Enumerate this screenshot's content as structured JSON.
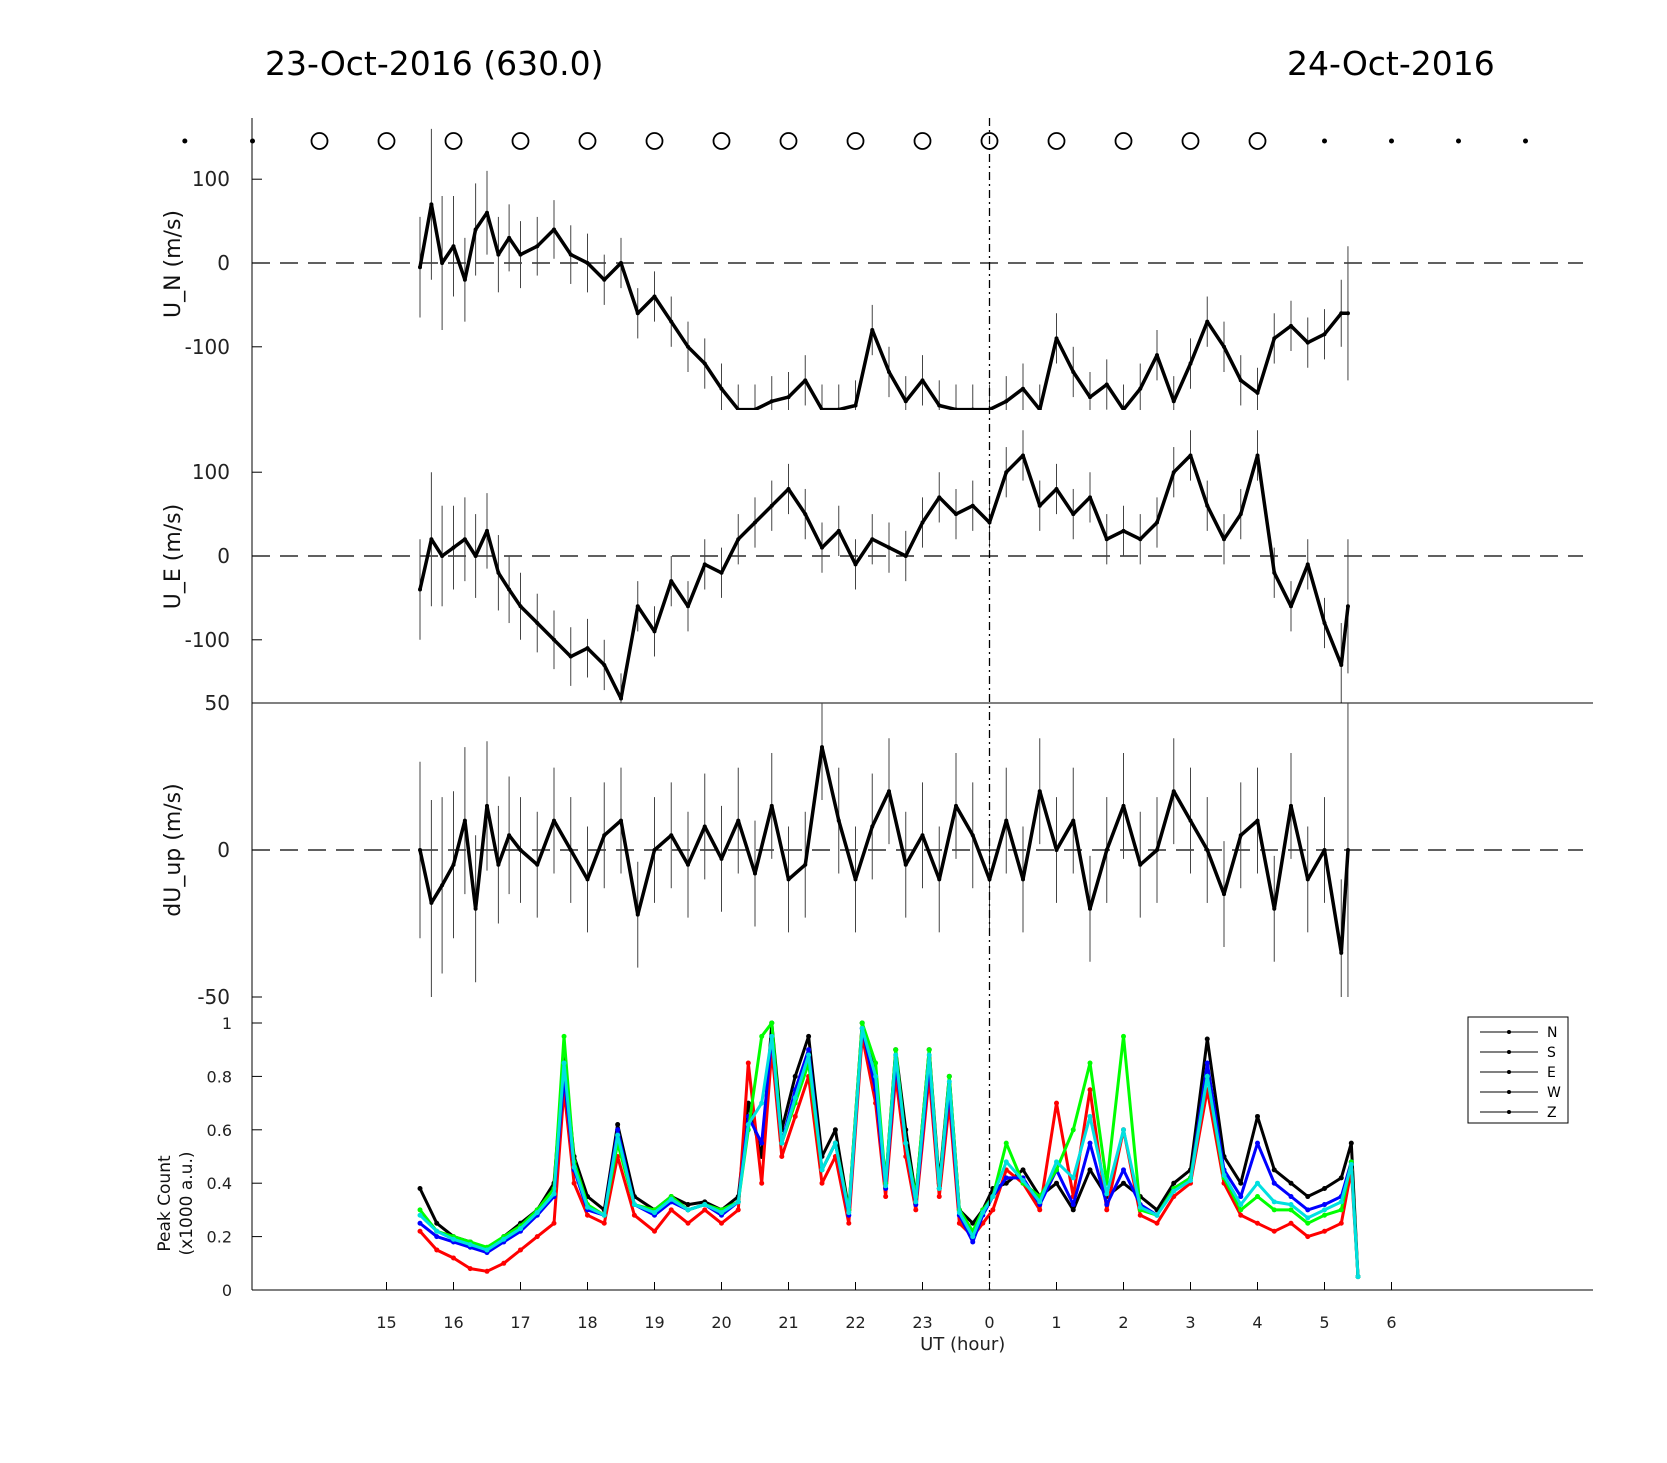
{
  "header": {
    "title_left": "23-Oct-2016 (630.0)",
    "title_right": "24-Oct-2016"
  },
  "chart_data": [
    {
      "type": "line",
      "panel": "U_N",
      "ylabel": "U_N (m/s)",
      "ylim": [
        -175,
        175
      ],
      "yticks": [
        100,
        0,
        -100
      ],
      "x_range_hours": [
        15.5,
        29.5
      ],
      "series": [
        {
          "error_bars": true,
          "x": [
            15.5,
            15.67,
            15.83,
            16.0,
            16.17,
            16.33,
            16.5,
            16.67,
            16.83,
            17.0,
            17.25,
            17.5,
            17.75,
            18.0,
            18.25,
            18.5,
            18.75,
            19.0,
            19.25,
            19.5,
            19.75,
            20.0,
            20.25,
            20.5,
            20.75,
            21.0,
            21.25,
            21.5,
            21.75,
            22.0,
            22.25,
            22.5,
            22.75,
            23.0,
            23.25,
            23.5,
            23.75,
            24.0,
            24.25,
            24.5,
            24.75,
            25.0,
            25.25,
            25.5,
            25.75,
            26.0,
            26.25,
            26.5,
            26.75,
            27.0,
            27.25,
            27.5,
            27.75,
            28.0,
            28.25,
            28.5,
            28.75,
            29.0,
            29.25,
            29.35
          ],
          "y": [
            -5,
            70,
            0,
            20,
            -20,
            40,
            60,
            10,
            30,
            10,
            20,
            40,
            10,
            0,
            -20,
            0,
            -60,
            -40,
            -70,
            -100,
            -120,
            -150,
            -175,
            -175,
            -165,
            -160,
            -140,
            -175,
            -175,
            -170,
            -80,
            -130,
            -165,
            -140,
            -170,
            -175,
            -175,
            -175,
            -165,
            -150,
            -175,
            -90,
            -130,
            -160,
            -145,
            -175,
            -150,
            -110,
            -165,
            -120,
            -70,
            -100,
            -140,
            -155,
            -90,
            -75,
            -95,
            -85,
            -60,
            -60
          ],
          "err": [
            60,
            90,
            80,
            60,
            50,
            55,
            50,
            45,
            40,
            40,
            35,
            35,
            35,
            35,
            30,
            30,
            30,
            30,
            30,
            30,
            30,
            30,
            30,
            30,
            30,
            30,
            30,
            30,
            30,
            30,
            30,
            30,
            30,
            30,
            30,
            30,
            30,
            30,
            30,
            30,
            30,
            30,
            30,
            30,
            30,
            30,
            30,
            30,
            30,
            30,
            30,
            30,
            30,
            30,
            30,
            30,
            30,
            30,
            40,
            80
          ]
        }
      ]
    },
    {
      "type": "line",
      "panel": "U_E",
      "ylabel": "U_E (m/s)",
      "ylim": [
        -175,
        175
      ],
      "yticks": [
        100,
        0,
        -100
      ],
      "x_range_hours": [
        15.5,
        29.5
      ],
      "series": [
        {
          "error_bars": true,
          "x": [
            15.5,
            15.67,
            15.83,
            16.0,
            16.17,
            16.33,
            16.5,
            16.67,
            16.83,
            17.0,
            17.25,
            17.5,
            17.75,
            18.0,
            18.25,
            18.5,
            18.75,
            19.0,
            19.25,
            19.5,
            19.75,
            20.0,
            20.25,
            20.5,
            20.75,
            21.0,
            21.25,
            21.5,
            21.75,
            22.0,
            22.25,
            22.5,
            22.75,
            23.0,
            23.25,
            23.5,
            23.75,
            24.0,
            24.25,
            24.5,
            24.75,
            25.0,
            25.25,
            25.5,
            25.75,
            26.0,
            26.25,
            26.5,
            26.75,
            27.0,
            27.25,
            27.5,
            27.75,
            28.0,
            28.25,
            28.5,
            28.75,
            29.0,
            29.25,
            29.35
          ],
          "y": [
            -40,
            20,
            0,
            10,
            20,
            0,
            30,
            -20,
            -40,
            -60,
            -80,
            -100,
            -120,
            -110,
            -130,
            -170,
            -60,
            -90,
            -30,
            -60,
            -10,
            -20,
            20,
            40,
            60,
            80,
            50,
            10,
            30,
            -10,
            20,
            10,
            0,
            40,
            70,
            50,
            60,
            40,
            100,
            120,
            60,
            80,
            50,
            70,
            20,
            30,
            20,
            40,
            100,
            120,
            60,
            20,
            50,
            120,
            -20,
            -60,
            -10,
            -80,
            -130,
            -60
          ],
          "err": [
            60,
            80,
            60,
            50,
            50,
            50,
            45,
            45,
            40,
            40,
            35,
            35,
            35,
            35,
            30,
            30,
            30,
            30,
            30,
            30,
            30,
            30,
            30,
            30,
            30,
            30,
            30,
            30,
            30,
            30,
            30,
            30,
            30,
            30,
            30,
            30,
            30,
            30,
            30,
            30,
            30,
            30,
            30,
            30,
            30,
            30,
            30,
            30,
            30,
            30,
            30,
            30,
            30,
            30,
            30,
            30,
            30,
            30,
            50,
            80
          ]
        }
      ]
    },
    {
      "type": "line",
      "panel": "dU_up",
      "ylabel": "dU_up (m/s)",
      "ylim": [
        -50,
        50
      ],
      "yticks": [
        50,
        0,
        -50
      ],
      "x_range_hours": [
        15.5,
        29.5
      ],
      "series": [
        {
          "error_bars": true,
          "x": [
            15.5,
            15.67,
            15.83,
            16.0,
            16.17,
            16.33,
            16.5,
            16.67,
            16.83,
            17.0,
            17.25,
            17.5,
            17.75,
            18.0,
            18.25,
            18.5,
            18.75,
            19.0,
            19.25,
            19.5,
            19.75,
            20.0,
            20.25,
            20.5,
            20.75,
            21.0,
            21.25,
            21.5,
            21.75,
            22.0,
            22.25,
            22.5,
            22.75,
            23.0,
            23.25,
            23.5,
            23.75,
            24.0,
            24.25,
            24.5,
            24.75,
            25.0,
            25.25,
            25.5,
            25.75,
            26.0,
            26.25,
            26.5,
            26.75,
            27.0,
            27.25,
            27.5,
            27.75,
            28.0,
            28.25,
            28.5,
            28.75,
            29.0,
            29.25,
            29.35
          ],
          "y": [
            0,
            -18,
            -12,
            -5,
            10,
            -20,
            15,
            -5,
            5,
            0,
            -5,
            10,
            0,
            -10,
            5,
            10,
            -22,
            0,
            5,
            -5,
            8,
            -3,
            10,
            -8,
            15,
            -10,
            -5,
            35,
            10,
            -10,
            8,
            20,
            -5,
            5,
            -10,
            15,
            5,
            -10,
            10,
            -10,
            20,
            0,
            10,
            -20,
            0,
            15,
            -5,
            0,
            20,
            10,
            0,
            -15,
            5,
            10,
            -20,
            15,
            -10,
            0,
            -35,
            0
          ],
          "err": [
            30,
            35,
            30,
            25,
            25,
            25,
            22,
            20,
            20,
            18,
            18,
            18,
            18,
            18,
            18,
            18,
            18,
            18,
            18,
            18,
            18,
            18,
            18,
            18,
            18,
            18,
            18,
            18,
            18,
            18,
            18,
            18,
            18,
            18,
            18,
            18,
            18,
            18,
            18,
            18,
            18,
            18,
            18,
            18,
            18,
            18,
            18,
            18,
            18,
            18,
            18,
            18,
            18,
            18,
            18,
            18,
            18,
            18,
            25,
            50
          ]
        }
      ]
    },
    {
      "type": "line",
      "panel": "peak_count",
      "ylabel": "Peak Count (x1000 a.u.)",
      "xlabel": "UT (hour)",
      "ylim": [
        0,
        1
      ],
      "yticks": [
        0,
        0.2,
        0.4,
        0.6,
        0.8,
        1
      ],
      "xlim": [
        12.8,
        32.8
      ],
      "x_ticks_hours": [
        15,
        16,
        17,
        18,
        19,
        20,
        21,
        22,
        23,
        24,
        25,
        26,
        27,
        28,
        29,
        30
      ],
      "x_tick_labels": [
        "15",
        "16",
        "17",
        "18",
        "19",
        "20",
        "21",
        "22",
        "23",
        "0",
        "1",
        "2",
        "3",
        "4",
        "5",
        "6"
      ],
      "legend_position": "top-right",
      "x": [
        15.5,
        15.75,
        16.0,
        16.25,
        16.5,
        16.75,
        17.0,
        17.25,
        17.5,
        17.65,
        17.8,
        18.0,
        18.25,
        18.45,
        18.7,
        19.0,
        19.25,
        19.5,
        19.75,
        20.0,
        20.25,
        20.4,
        20.6,
        20.75,
        20.9,
        21.1,
        21.3,
        21.5,
        21.7,
        21.9,
        22.1,
        22.3,
        22.45,
        22.6,
        22.75,
        22.9,
        23.1,
        23.25,
        23.4,
        23.55,
        23.75,
        23.9,
        24.05,
        24.25,
        24.5,
        24.75,
        25.0,
        25.25,
        25.5,
        25.75,
        26.0,
        26.25,
        26.5,
        26.75,
        27.0,
        27.25,
        27.5,
        27.75,
        28.0,
        28.25,
        28.5,
        28.75,
        29.0,
        29.25,
        29.4,
        29.5
      ],
      "series": [
        {
          "name": "N",
          "color": "#000000",
          "y": [
            0.38,
            0.25,
            0.2,
            0.18,
            0.15,
            0.2,
            0.25,
            0.3,
            0.4,
            0.87,
            0.5,
            0.35,
            0.3,
            0.62,
            0.35,
            0.3,
            0.35,
            0.32,
            0.33,
            0.3,
            0.35,
            0.7,
            0.5,
            1.0,
            0.6,
            0.8,
            0.95,
            0.5,
            0.6,
            0.3,
            1.0,
            0.8,
            0.4,
            0.9,
            0.6,
            0.35,
            0.9,
            0.4,
            0.8,
            0.3,
            0.25,
            0.3,
            0.38,
            0.4,
            0.45,
            0.35,
            0.4,
            0.3,
            0.45,
            0.35,
            0.4,
            0.35,
            0.3,
            0.4,
            0.45,
            0.94,
            0.5,
            0.4,
            0.65,
            0.45,
            0.4,
            0.35,
            0.38,
            0.42,
            0.55,
            0.05
          ]
        },
        {
          "name": "S",
          "color": "#ff0000",
          "y": [
            0.22,
            0.15,
            0.12,
            0.08,
            0.07,
            0.1,
            0.15,
            0.2,
            0.25,
            0.75,
            0.4,
            0.28,
            0.25,
            0.5,
            0.28,
            0.22,
            0.3,
            0.25,
            0.3,
            0.25,
            0.3,
            0.85,
            0.4,
            0.9,
            0.5,
            0.65,
            0.8,
            0.4,
            0.5,
            0.25,
            0.95,
            0.7,
            0.35,
            0.8,
            0.5,
            0.3,
            0.8,
            0.35,
            0.7,
            0.25,
            0.2,
            0.25,
            0.3,
            0.45,
            0.4,
            0.3,
            0.7,
            0.35,
            0.75,
            0.3,
            0.6,
            0.28,
            0.25,
            0.35,
            0.4,
            0.75,
            0.4,
            0.28,
            0.25,
            0.22,
            0.25,
            0.2,
            0.22,
            0.25,
            0.45,
            0.05
          ]
        },
        {
          "name": "E",
          "color": "#0000ff",
          "y": [
            0.25,
            0.2,
            0.18,
            0.16,
            0.14,
            0.18,
            0.22,
            0.28,
            0.35,
            0.8,
            0.45,
            0.3,
            0.28,
            0.6,
            0.32,
            0.28,
            0.33,
            0.3,
            0.32,
            0.28,
            0.33,
            0.65,
            0.55,
            0.95,
            0.55,
            0.75,
            0.9,
            0.45,
            0.55,
            0.28,
            0.98,
            0.75,
            0.38,
            0.85,
            0.55,
            0.32,
            0.85,
            0.38,
            0.75,
            0.28,
            0.18,
            0.28,
            0.35,
            0.42,
            0.42,
            0.32,
            0.45,
            0.32,
            0.55,
            0.32,
            0.45,
            0.32,
            0.28,
            0.38,
            0.42,
            0.85,
            0.45,
            0.35,
            0.55,
            0.4,
            0.35,
            0.3,
            0.32,
            0.35,
            0.48,
            0.05
          ]
        },
        {
          "name": "W",
          "color": "#00ff00",
          "y": [
            0.3,
            0.22,
            0.2,
            0.18,
            0.16,
            0.2,
            0.24,
            0.3,
            0.38,
            0.95,
            0.48,
            0.32,
            0.28,
            0.55,
            0.32,
            0.3,
            0.35,
            0.3,
            0.32,
            0.3,
            0.33,
            0.6,
            0.95,
            1.0,
            0.55,
            0.7,
            0.85,
            0.45,
            0.55,
            0.3,
            1.0,
            0.85,
            0.4,
            0.9,
            0.55,
            0.35,
            0.9,
            0.38,
            0.8,
            0.3,
            0.22,
            0.3,
            0.35,
            0.55,
            0.4,
            0.35,
            0.45,
            0.6,
            0.85,
            0.4,
            0.95,
            0.3,
            0.28,
            0.38,
            0.42,
            0.8,
            0.42,
            0.3,
            0.35,
            0.3,
            0.3,
            0.25,
            0.28,
            0.3,
            0.48,
            0.05
          ]
        },
        {
          "name": "Z",
          "color": "#00e0e0",
          "y": [
            0.28,
            0.22,
            0.19,
            0.17,
            0.15,
            0.19,
            0.23,
            0.29,
            0.36,
            0.85,
            0.46,
            0.31,
            0.28,
            0.58,
            0.32,
            0.29,
            0.34,
            0.3,
            0.32,
            0.29,
            0.33,
            0.62,
            0.7,
            0.95,
            0.55,
            0.72,
            0.88,
            0.45,
            0.55,
            0.29,
            0.98,
            0.8,
            0.39,
            0.88,
            0.55,
            0.33,
            0.88,
            0.38,
            0.78,
            0.29,
            0.2,
            0.29,
            0.35,
            0.48,
            0.41,
            0.33,
            0.48,
            0.42,
            0.65,
            0.36,
            0.6,
            0.31,
            0.28,
            0.37,
            0.41,
            0.8,
            0.43,
            0.32,
            0.4,
            0.33,
            0.32,
            0.27,
            0.3,
            0.33,
            0.47,
            0.05
          ]
        }
      ]
    }
  ],
  "markers": {
    "circle_hours": [
      14.0,
      15.0,
      16.0,
      17.0,
      18.0,
      19.0,
      20.0,
      21.0,
      22.0,
      23.0,
      24.0,
      25.0,
      26.0,
      27.0,
      28.0
    ],
    "dot_hours_left": [
      11.99,
      13.0
    ],
    "dot_hours_right": [
      29.0,
      30.0,
      31.0,
      32.0
    ]
  }
}
